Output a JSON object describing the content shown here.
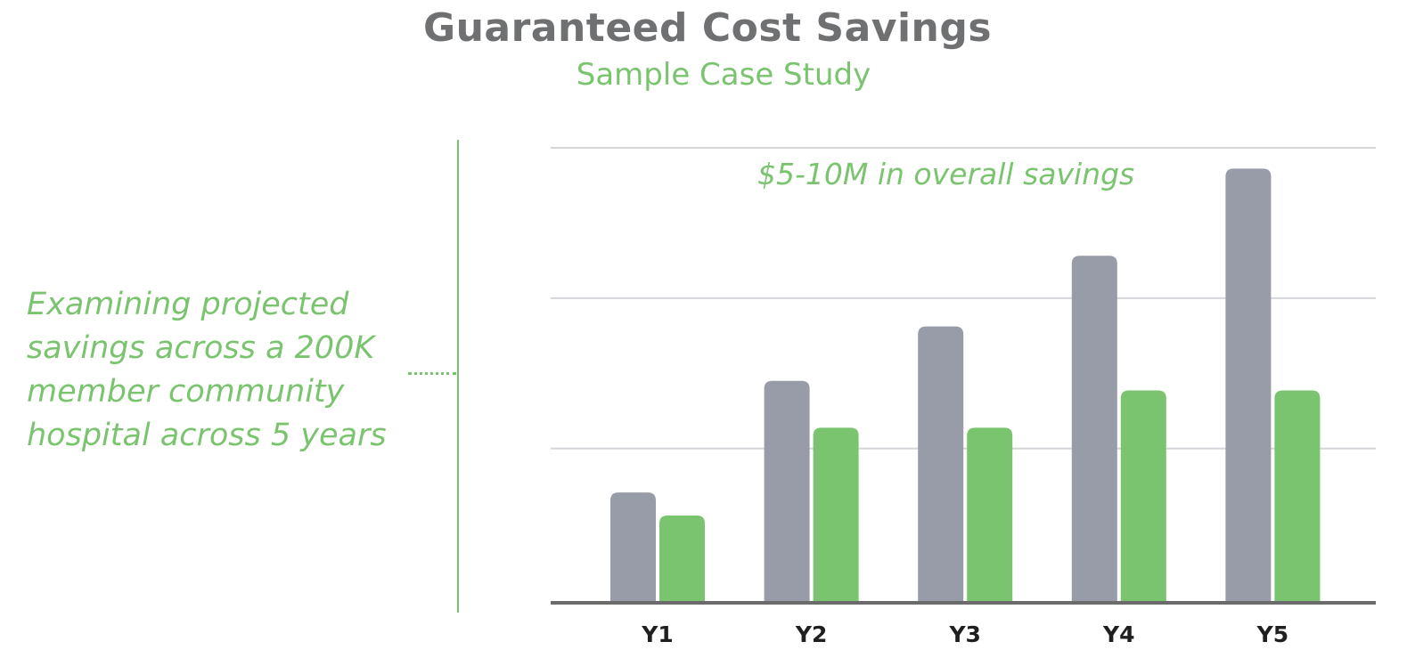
{
  "chart_data": {
    "type": "bar",
    "title": "Guaranteed Cost Savings",
    "subtitle": "Sample Case Study",
    "categories": [
      "Y1",
      "Y2",
      "Y3",
      "Y4",
      "Y5"
    ],
    "series": [
      {
        "color": "#989ca9",
        "values": [
          1.47,
          2.97,
          3.7,
          4.65,
          5.82
        ]
      },
      {
        "color": "#7bc46f",
        "values": [
          1.16,
          2.34,
          2.34,
          2.84,
          2.84
        ]
      }
    ],
    "ylim": [
      0,
      6.1
    ],
    "gridlines": [
      2.06,
      4.08,
      6.1
    ],
    "grid": true,
    "axis_color": "#6b6b6b",
    "annotation": "$5-10M in overall savings",
    "side_note": "Examining projected\nsavings across a 200K\nmember community\nhospital across 5 years"
  }
}
